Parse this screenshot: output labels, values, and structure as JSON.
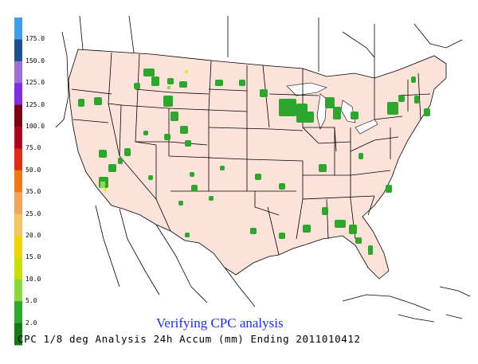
{
  "legend": {
    "bins": [
      {
        "label": "175.0",
        "color": "#3ea0e6"
      },
      {
        "label": "150.0",
        "color": "#1f4f8c"
      },
      {
        "label": "125.0",
        "color": "#9d6fd1"
      },
      {
        "label": "125.0",
        "color": "#7d2ee6"
      },
      {
        "label": "100.0",
        "color": "#7a0010"
      },
      {
        "label": "75.0",
        "color": "#b0001c"
      },
      {
        "label": "50.0",
        "color": "#df2a16"
      },
      {
        "label": "35.0",
        "color": "#f07a16"
      },
      {
        "label": "25.0",
        "color": "#f3a35f"
      },
      {
        "label": "20.0",
        "color": "#f2c560"
      },
      {
        "label": "15.0",
        "color": "#f0d400"
      },
      {
        "label": "10.0",
        "color": "#c8e000"
      },
      {
        "label": "5.0",
        "color": "#8bd83a"
      },
      {
        "label": "2.0",
        "color": "#2fa82f"
      },
      {
        "label": "",
        "color": "#157a15"
      }
    ]
  },
  "caption": "Verifying CPC analysis",
  "footer": "CPC 1/8 deg Analysis 24h Accum (mm) Ending 2011010412",
  "colors": {
    "land_fill": "#fde2da",
    "precip_green": "#2ea62e",
    "precip_light": "#8fdc5a",
    "precip_yellow": "#e8e840",
    "border": "#000000"
  }
}
